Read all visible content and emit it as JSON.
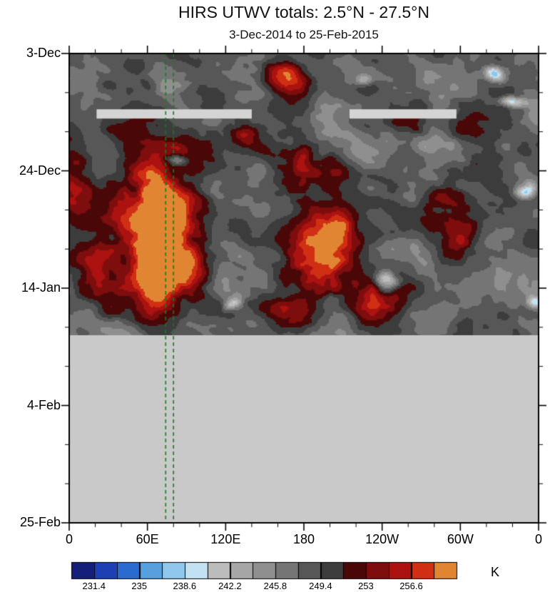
{
  "chart_data": {
    "type": "heatmap",
    "title": "HIRS UTWV totals: 2.5°N - 27.5°N",
    "subtitle": "3-Dec-2014 to 25-Feb-2015",
    "x_axis": {
      "tick_labels": [
        "0",
        "60E",
        "120E",
        "180",
        "120W",
        "60W",
        "0"
      ],
      "minor_divisions_per_major": 3
    },
    "y_axis": {
      "tick_labels": [
        "3-Dec",
        "24-Dec",
        "14-Jan",
        "4-Feb",
        "25-Feb"
      ],
      "minor_divisions_per_major": 3
    },
    "colorbar": {
      "unit": "K",
      "tick_labels": [
        "231.4",
        "235",
        "238.6",
        "242.2",
        "245.8",
        "249.4",
        "253",
        "256.6"
      ],
      "levels_start": 229.6,
      "level_step": 1.8,
      "palette": [
        "#151f7a",
        "#1e3fb4",
        "#2b6bcf",
        "#57a0dd",
        "#8ec7ea",
        "#c2e1f2",
        "#bcbcbc",
        "#a6a6a6",
        "#8f8f8f",
        "#757575",
        "#575757",
        "#3c3c3c",
        "#4a0707",
        "#7e0d0d",
        "#ab1210",
        "#d02f14",
        "#e08632"
      ]
    },
    "field": {
      "background_range_k": [
        240.8,
        252.2
      ],
      "missing_color": "#c9c9c9",
      "missing_bar_color": "#d4d4d4",
      "missing_from_time_frac": 0.6,
      "missing_bars": [
        {
          "time_frac": 0.128,
          "lon_from": 21,
          "lon_to": 140
        },
        {
          "time_frac": 0.128,
          "lon_from": 215,
          "lon_to": 297
        }
      ],
      "marker_lines_lon": [
        74,
        80
      ],
      "marker_line_color": "#1b7a1b",
      "warm_regions": [
        {
          "lon": 63,
          "time_frac": 0.236,
          "rx_deg": 33,
          "ry_days": 10,
          "strength": 0.6
        },
        {
          "lon": 64,
          "time_frac": 0.342,
          "rx_deg": 30,
          "ry_days": 9,
          "strength": 0.8
        },
        {
          "lon": 73,
          "time_frac": 0.471,
          "rx_deg": 25,
          "ry_days": 8,
          "strength": 0.85
        },
        {
          "lon": 66,
          "time_frac": 0.403,
          "rx_deg": 33,
          "ry_days": 10,
          "strength": 0.55
        },
        {
          "lon": 22,
          "time_frac": 0.456,
          "rx_deg": 22,
          "ry_days": 6.5,
          "strength": 0.65
        },
        {
          "lon": 2,
          "time_frac": 0.304,
          "rx_deg": 16,
          "ry_days": 8,
          "strength": 0.55
        },
        {
          "lon": 167,
          "time_frac": 0.046,
          "rx_deg": 19,
          "ry_days": 3.2,
          "strength": 0.9
        },
        {
          "lon": 189,
          "time_frac": 0.243,
          "rx_deg": 25,
          "ry_days": 4.5,
          "strength": 0.8
        },
        {
          "lon": 202,
          "time_frac": 0.388,
          "rx_deg": 27,
          "ry_days": 5.1,
          "strength": 0.95
        },
        {
          "lon": 191,
          "time_frac": 0.471,
          "rx_deg": 25,
          "ry_days": 4.5,
          "strength": 0.95
        },
        {
          "lon": 233,
          "time_frac": 0.524,
          "rx_deg": 25,
          "ry_days": 3.8,
          "strength": 0.85
        },
        {
          "lon": 164,
          "time_frac": 0.555,
          "rx_deg": 22,
          "ry_days": 3.2,
          "strength": 0.65
        },
        {
          "lon": 284,
          "time_frac": 0.304,
          "rx_deg": 22,
          "ry_days": 5.7,
          "strength": 0.6
        },
        {
          "lon": 298,
          "time_frac": 0.395,
          "rx_deg": 19,
          "ry_days": 4.5,
          "strength": 0.55
        },
        {
          "lon": 263,
          "time_frac": 0.137,
          "rx_deg": 16,
          "ry_days": 3.2,
          "strength": 0.5
        },
        {
          "lon": 306,
          "time_frac": 0.144,
          "rx_deg": 16,
          "ry_days": 3.2,
          "strength": 0.45
        },
        {
          "lon": 134,
          "time_frac": 0.175,
          "rx_deg": 15,
          "ry_days": 2.6,
          "strength": 0.4
        }
      ],
      "cold_regions": [
        {
          "lon": 326,
          "time_frac": 0.038,
          "rx_deg": 10,
          "ry_days": 1.5,
          "strength": 0.9
        },
        {
          "lon": 337,
          "time_frac": 0.099,
          "rx_deg": 12,
          "ry_days": 1.2,
          "strength": 0.8
        },
        {
          "lon": 350,
          "time_frac": 0.281,
          "rx_deg": 8,
          "ry_days": 1.6,
          "strength": 0.85
        },
        {
          "lon": 243,
          "time_frac": 0.486,
          "rx_deg": 11,
          "ry_days": 1.6,
          "strength": 0.9
        },
        {
          "lon": 123,
          "time_frac": 0.54,
          "rx_deg": 8,
          "ry_days": 1.3,
          "strength": 0.7
        },
        {
          "lon": 82,
          "time_frac": 0.213,
          "rx_deg": 8,
          "ry_days": 1.1,
          "strength": 0.6
        },
        {
          "lon": 228,
          "time_frac": 0.046,
          "rx_deg": 7,
          "ry_days": 1.1,
          "strength": 0.5
        },
        {
          "lon": 358,
          "time_frac": 0.532,
          "rx_deg": 7,
          "ry_days": 1.3,
          "strength": 0.6
        }
      ]
    }
  }
}
